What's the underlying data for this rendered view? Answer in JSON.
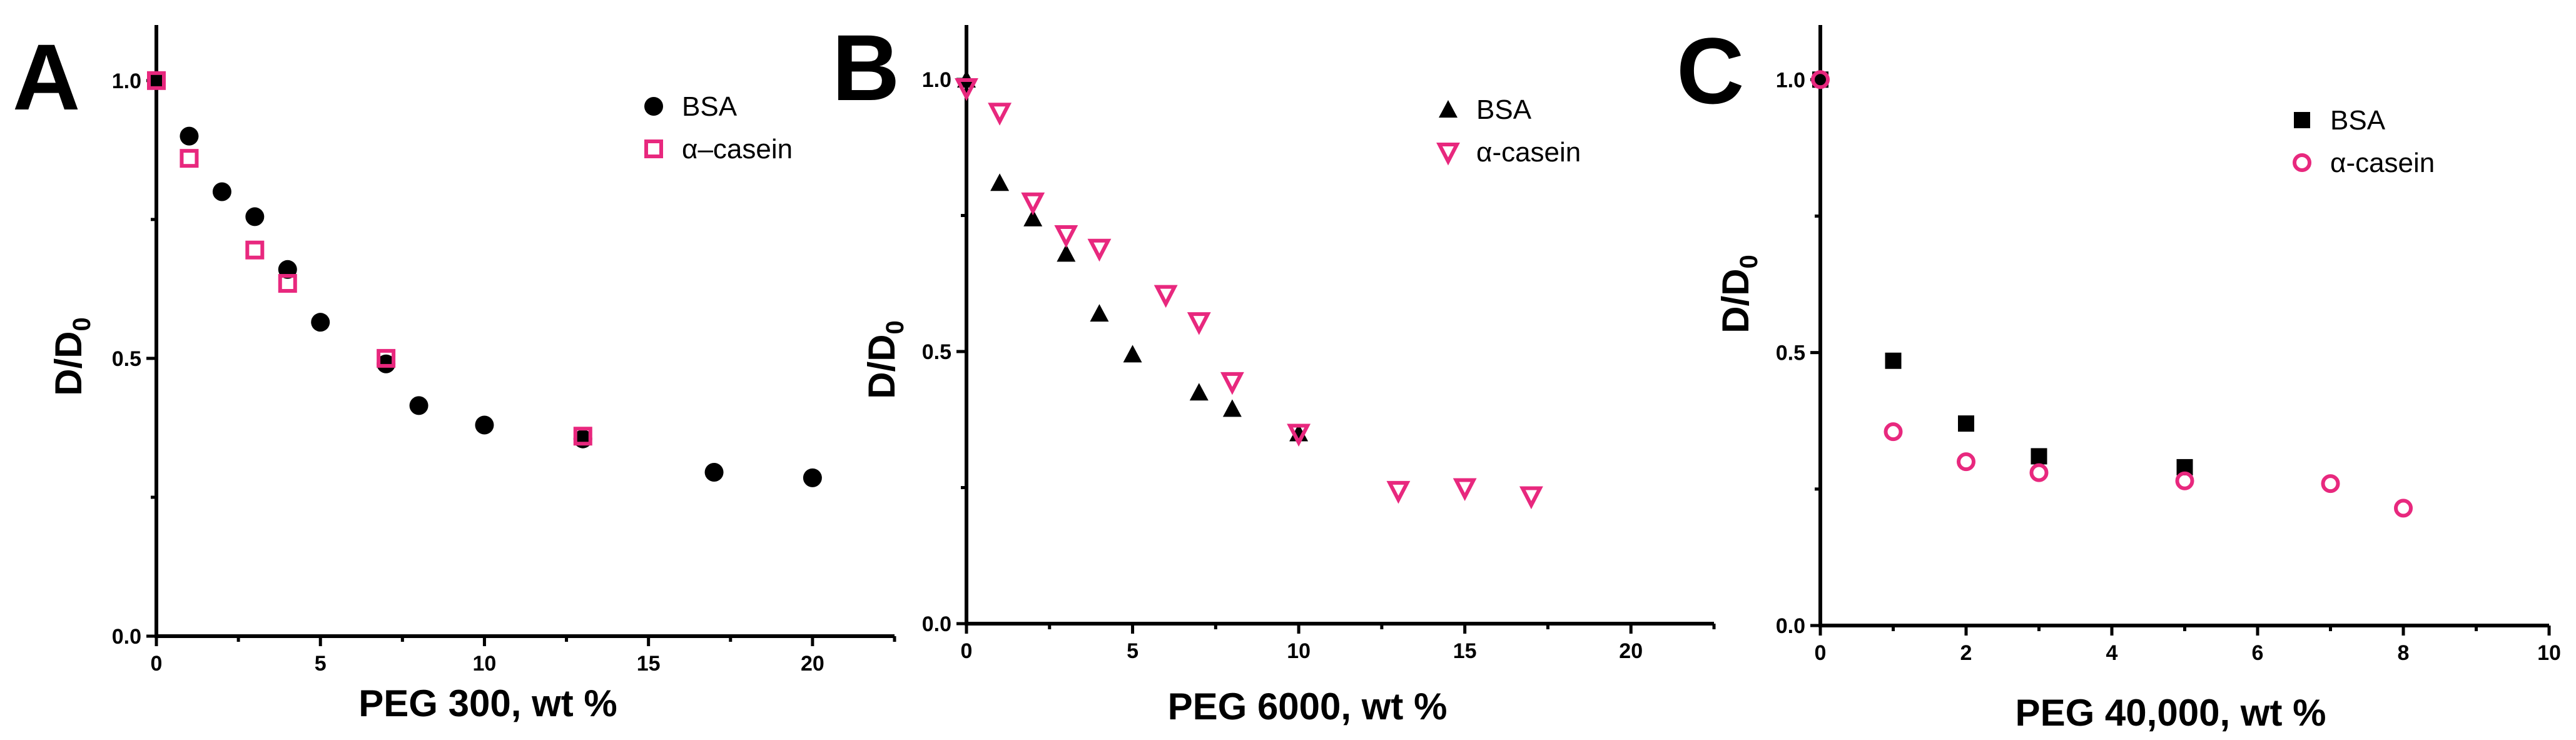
{
  "colors": {
    "black": "#000000",
    "pink": "#e8287e"
  },
  "chart_data": [
    {
      "type": "scatter",
      "panel": "A",
      "xlabel": "PEG 300, wt %",
      "ylabel": "D/D",
      "ylabel_sub": "0",
      "xlim": [
        0,
        22.5
      ],
      "ylim": [
        0,
        1.1
      ],
      "xticks": [
        0,
        5,
        10,
        15,
        20
      ],
      "xtick_labels": [
        "0",
        "5",
        "10",
        "15",
        "20"
      ],
      "yticks": [
        0,
        0.5,
        1.0
      ],
      "ytick_labels": [
        "0.0",
        "0.5",
        "1.0"
      ],
      "legend_position": "top-right",
      "series": [
        {
          "name": "BSA",
          "marker": "circle-filled",
          "color": "#000000",
          "x": [
            0,
            1,
            2,
            3,
            4,
            5,
            7,
            8,
            10,
            13,
            17,
            20
          ],
          "y": [
            1.0,
            0.9,
            0.8,
            0.755,
            0.66,
            0.565,
            0.49,
            0.415,
            0.38,
            0.355,
            0.295,
            0.285
          ]
        },
        {
          "name": "α–casein",
          "marker": "square-open",
          "color": "#e8287e",
          "x": [
            0,
            1,
            3,
            4,
            7,
            13
          ],
          "y": [
            1.0,
            0.86,
            0.695,
            0.635,
            0.5,
            0.36
          ]
        }
      ]
    },
    {
      "type": "scatter",
      "panel": "B",
      "xlabel": "PEG 6000, wt %",
      "ylabel": "D/D",
      "ylabel_sub": "0",
      "xlim": [
        0,
        22.5
      ],
      "ylim": [
        0,
        1.1
      ],
      "xticks": [
        0,
        5,
        10,
        15,
        20
      ],
      "xtick_labels": [
        "0",
        "5",
        "10",
        "15",
        "20"
      ],
      "yticks": [
        0,
        0.5,
        1.0
      ],
      "ytick_labels": [
        "0.0",
        "0.5",
        "1.0"
      ],
      "legend_position": "top-right",
      "series": [
        {
          "name": "BSA",
          "marker": "triangle-up-filled",
          "color": "#000000",
          "x": [
            0,
            1,
            2,
            3,
            4,
            5,
            7,
            8,
            10
          ],
          "y": [
            1.0,
            0.81,
            0.745,
            0.68,
            0.57,
            0.495,
            0.425,
            0.395,
            0.35
          ]
        },
        {
          "name": "α-casein",
          "marker": "triangle-down-open",
          "color": "#e8287e",
          "x": [
            0,
            1,
            2,
            3,
            4,
            6,
            7,
            8,
            10,
            13,
            15,
            17
          ],
          "y": [
            0.985,
            0.94,
            0.775,
            0.715,
            0.69,
            0.605,
            0.555,
            0.445,
            0.35,
            0.245,
            0.25,
            0.235
          ]
        }
      ]
    },
    {
      "type": "scatter",
      "panel": "C",
      "xlabel": "PEG 40,000, wt %",
      "ylabel": "D/D",
      "ylabel_sub": "0",
      "xlim": [
        0,
        10
      ],
      "ylim": [
        0,
        1.1
      ],
      "xticks": [
        0,
        2,
        4,
        6,
        8,
        10
      ],
      "xtick_labels": [
        "0",
        "2",
        "4",
        "6",
        "8",
        "10"
      ],
      "yticks": [
        0,
        0.5,
        1.0
      ],
      "ytick_labels": [
        "0.0",
        "0.5",
        "1.0"
      ],
      "legend_position": "top-right",
      "series": [
        {
          "name": "BSA",
          "marker": "square-filled",
          "color": "#000000",
          "x": [
            0,
            1,
            2,
            3,
            5
          ],
          "y": [
            1.0,
            0.485,
            0.37,
            0.31,
            0.29
          ]
        },
        {
          "name": "α-casein",
          "marker": "circle-open",
          "color": "#e8287e",
          "x": [
            0,
            1,
            2,
            3,
            5,
            7,
            8
          ],
          "y": [
            1.0,
            0.355,
            0.3,
            0.28,
            0.265,
            0.26,
            0.215
          ]
        }
      ]
    }
  ]
}
